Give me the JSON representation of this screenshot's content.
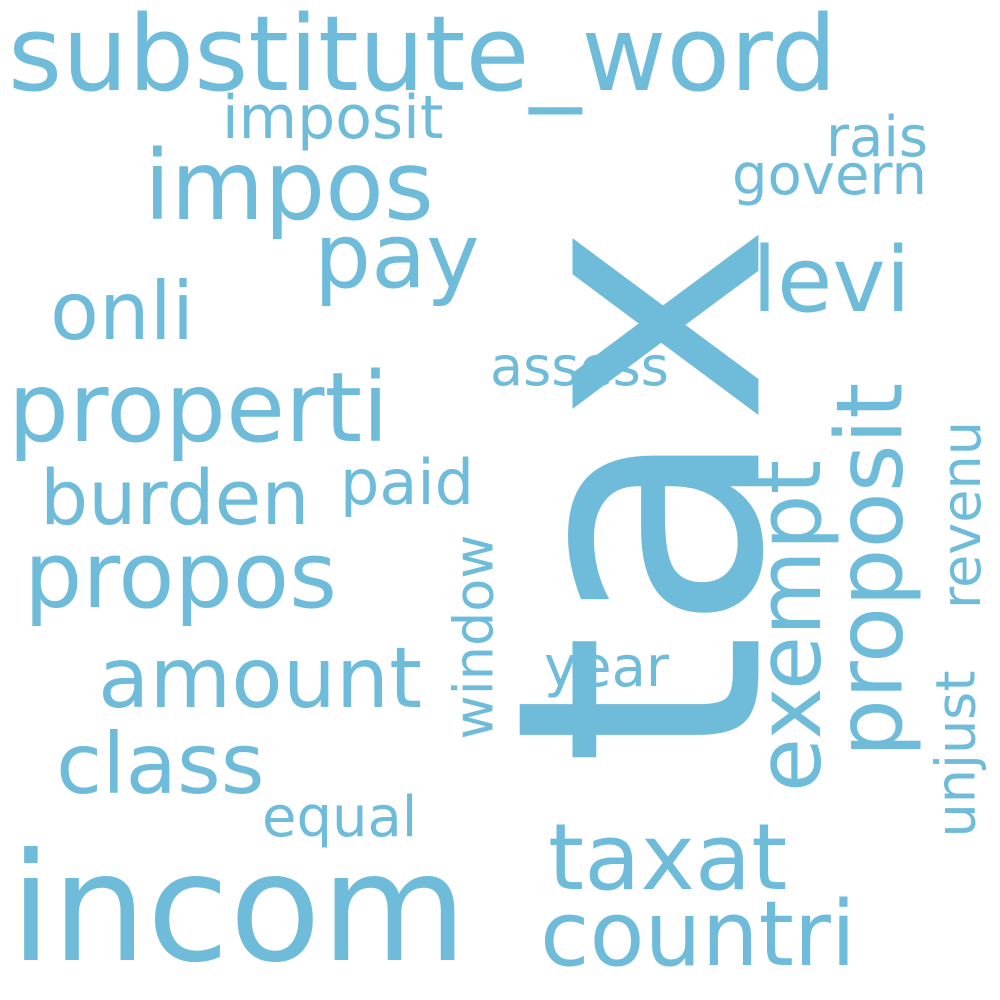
{
  "word_color": "#6fbcda",
  "background_color": "#ffffff",
  "words": {
    "tax": "tax",
    "substitute_word": "substitute_word",
    "incom": "incom",
    "properti": "properti",
    "impos": "impos",
    "propos": "propos",
    "amount": "amount",
    "countri": "countri",
    "taxat": "taxat",
    "exempt": "exempt",
    "proposit": "proposit",
    "class": "class",
    "pay": "pay",
    "levi": "levi",
    "onli": "onli",
    "burden": "burden",
    "assess": "assess",
    "paid": "paid",
    "window": "window",
    "year": "year",
    "equal": "equal",
    "govern": "govern",
    "rais": "rais",
    "imposit": "imposit",
    "revenu": "revenu",
    "unjust": "unjust"
  }
}
